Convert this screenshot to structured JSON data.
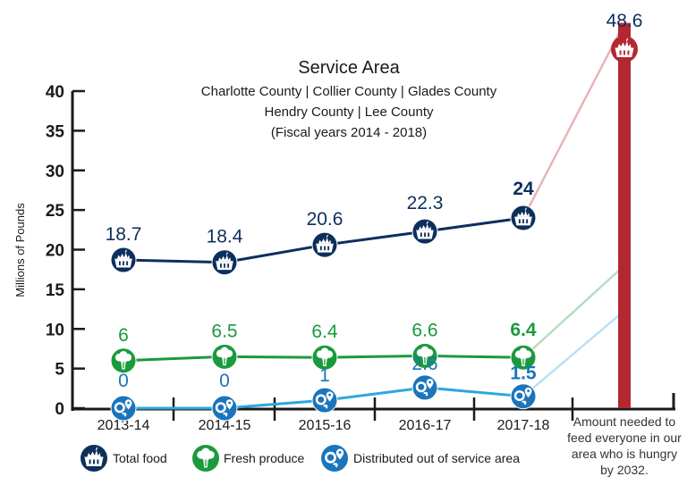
{
  "chart_data": {
    "type": "line",
    "title": "Service Area",
    "subtitle_lines": [
      "Charlotte County | Collier County | Glades County",
      "Hendry County | Lee County",
      "(Fiscal years 2014 - 2018)"
    ],
    "xlabel": "",
    "ylabel": "Millions of Pounds",
    "ylim": [
      0,
      40
    ],
    "yticks": [
      0,
      5,
      10,
      15,
      20,
      25,
      30,
      35,
      40
    ],
    "categories": [
      "2013-14",
      "2014-15",
      "2015-16",
      "2016-17",
      "2017-18"
    ],
    "grid": false,
    "legend_position": "bottom",
    "series": [
      {
        "name": "Total food",
        "icon": "basket-icon",
        "color": "#0d2f5c",
        "values": [
          18.7,
          18.4,
          20.6,
          22.3,
          24
        ],
        "labels": [
          "18.7",
          "18.4",
          "20.6",
          "22.3",
          "24"
        ],
        "projection_to": 48.6,
        "projection_color": "#e8b4b8"
      },
      {
        "name": "Fresh produce",
        "icon": "broccoli-icon",
        "color": "#1a9a3c",
        "values": [
          6,
          6.5,
          6.4,
          6.6,
          6.4
        ],
        "labels": [
          "6",
          "6.5",
          "6.4",
          "6.6",
          "6.4"
        ],
        "projection_to": 18.0,
        "projection_color": "#b5dcc0"
      },
      {
        "name": "Distributed out of service area",
        "icon": "map-pin-icon",
        "color": "#1a75bc",
        "line_color": "#29a8e0",
        "values": [
          0,
          0,
          1,
          2.6,
          1.5
        ],
        "labels": [
          "0",
          "0",
          "1",
          "2.6",
          "1.5"
        ],
        "projection_to": 12.3,
        "projection_color": "#b8e1f5"
      }
    ],
    "target": {
      "label": "Amount needed to feed everyone in our area who is hungry by 2032.",
      "label_lines": [
        "Amount needed to",
        "feed everyone in our",
        "area who is hungry",
        "by 2032."
      ],
      "value": 48.6,
      "value_label": "48.6",
      "color": "#b3282f"
    }
  }
}
